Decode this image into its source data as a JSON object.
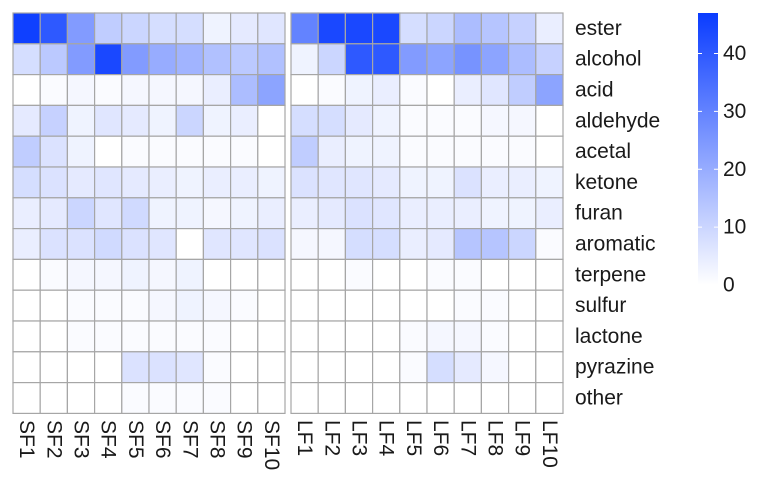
{
  "chart_data": {
    "type": "heatmap",
    "title": "",
    "xlabel": "",
    "ylabel": "",
    "rows": [
      "ester",
      "alcohol",
      "acid",
      "aldehyde",
      "acetal",
      "ketone",
      "furan",
      "aromatic",
      "terpene",
      "sulfur",
      "lactone",
      "pyrazine",
      "other"
    ],
    "panels": [
      {
        "columns": [
          "SF1",
          "SF2",
          "SF3",
          "SF4",
          "SF5",
          "SF6",
          "SF7",
          "SF8",
          "SF9",
          "SF10"
        ],
        "values": [
          [
            46,
            40,
            24,
            12,
            10,
            8,
            8,
            3,
            5,
            6
          ],
          [
            8,
            13,
            24,
            44,
            24,
            20,
            18,
            15,
            13,
            15
          ],
          [
            0,
            1,
            2,
            1,
            2,
            2,
            2,
            4,
            16,
            22
          ],
          [
            5,
            11,
            3,
            6,
            5,
            3,
            10,
            3,
            4,
            0
          ],
          [
            12,
            7,
            3,
            0,
            1,
            1,
            1,
            1,
            1,
            0
          ],
          [
            8,
            7,
            5,
            6,
            5,
            4,
            3,
            4,
            4,
            3
          ],
          [
            4,
            5,
            10,
            6,
            9,
            3,
            3,
            2,
            3,
            4
          ],
          [
            4,
            7,
            7,
            9,
            7,
            6,
            0,
            6,
            6,
            7
          ],
          [
            0,
            1,
            2,
            2,
            3,
            2,
            3,
            0,
            0,
            0
          ],
          [
            0,
            0,
            1,
            1,
            1,
            2,
            3,
            2,
            1,
            0
          ],
          [
            0,
            0,
            1,
            1,
            1,
            1,
            1,
            1,
            0,
            0
          ],
          [
            0,
            0,
            0,
            0,
            7,
            7,
            6,
            1,
            0,
            0
          ],
          [
            0,
            0,
            0,
            0,
            1,
            1,
            1,
            1,
            0,
            0
          ]
        ]
      },
      {
        "columns": [
          "LF1",
          "LF2",
          "LF3",
          "LF4",
          "LF5",
          "LF6",
          "LF7",
          "LF8",
          "LF9",
          "LF10"
        ],
        "values": [
          [
            30,
            44,
            44,
            44,
            8,
            10,
            16,
            14,
            11,
            4
          ],
          [
            3,
            10,
            40,
            40,
            24,
            22,
            26,
            22,
            16,
            11
          ],
          [
            0,
            1,
            3,
            4,
            1,
            0,
            4,
            6,
            12,
            22
          ],
          [
            8,
            8,
            5,
            3,
            1,
            1,
            1,
            2,
            2,
            0
          ],
          [
            12,
            4,
            3,
            3,
            1,
            1,
            1,
            1,
            1,
            0
          ],
          [
            7,
            6,
            6,
            5,
            3,
            3,
            7,
            4,
            4,
            3
          ],
          [
            4,
            5,
            7,
            6,
            4,
            4,
            4,
            3,
            3,
            4
          ],
          [
            2,
            2,
            8,
            8,
            4,
            5,
            14,
            14,
            10,
            1
          ],
          [
            0,
            0,
            1,
            0,
            0,
            1,
            1,
            0,
            0,
            0
          ],
          [
            0,
            0,
            0,
            0,
            0,
            0,
            1,
            1,
            0,
            0
          ],
          [
            0,
            0,
            0,
            0,
            1,
            2,
            2,
            1,
            0,
            0
          ],
          [
            0,
            0,
            0,
            0,
            1,
            8,
            5,
            2,
            0,
            0
          ],
          [
            0,
            0,
            0,
            0,
            0,
            0,
            0,
            0,
            0,
            0
          ]
        ]
      }
    ],
    "color_scale": {
      "low_color": "#ffffff",
      "high_color": "#0a3cff",
      "min": 0,
      "max": 47,
      "ticks": [
        0,
        10,
        20,
        30,
        40
      ]
    },
    "grid_color": "#a6a6a6",
    "legend_position": "right",
    "grid": true
  }
}
